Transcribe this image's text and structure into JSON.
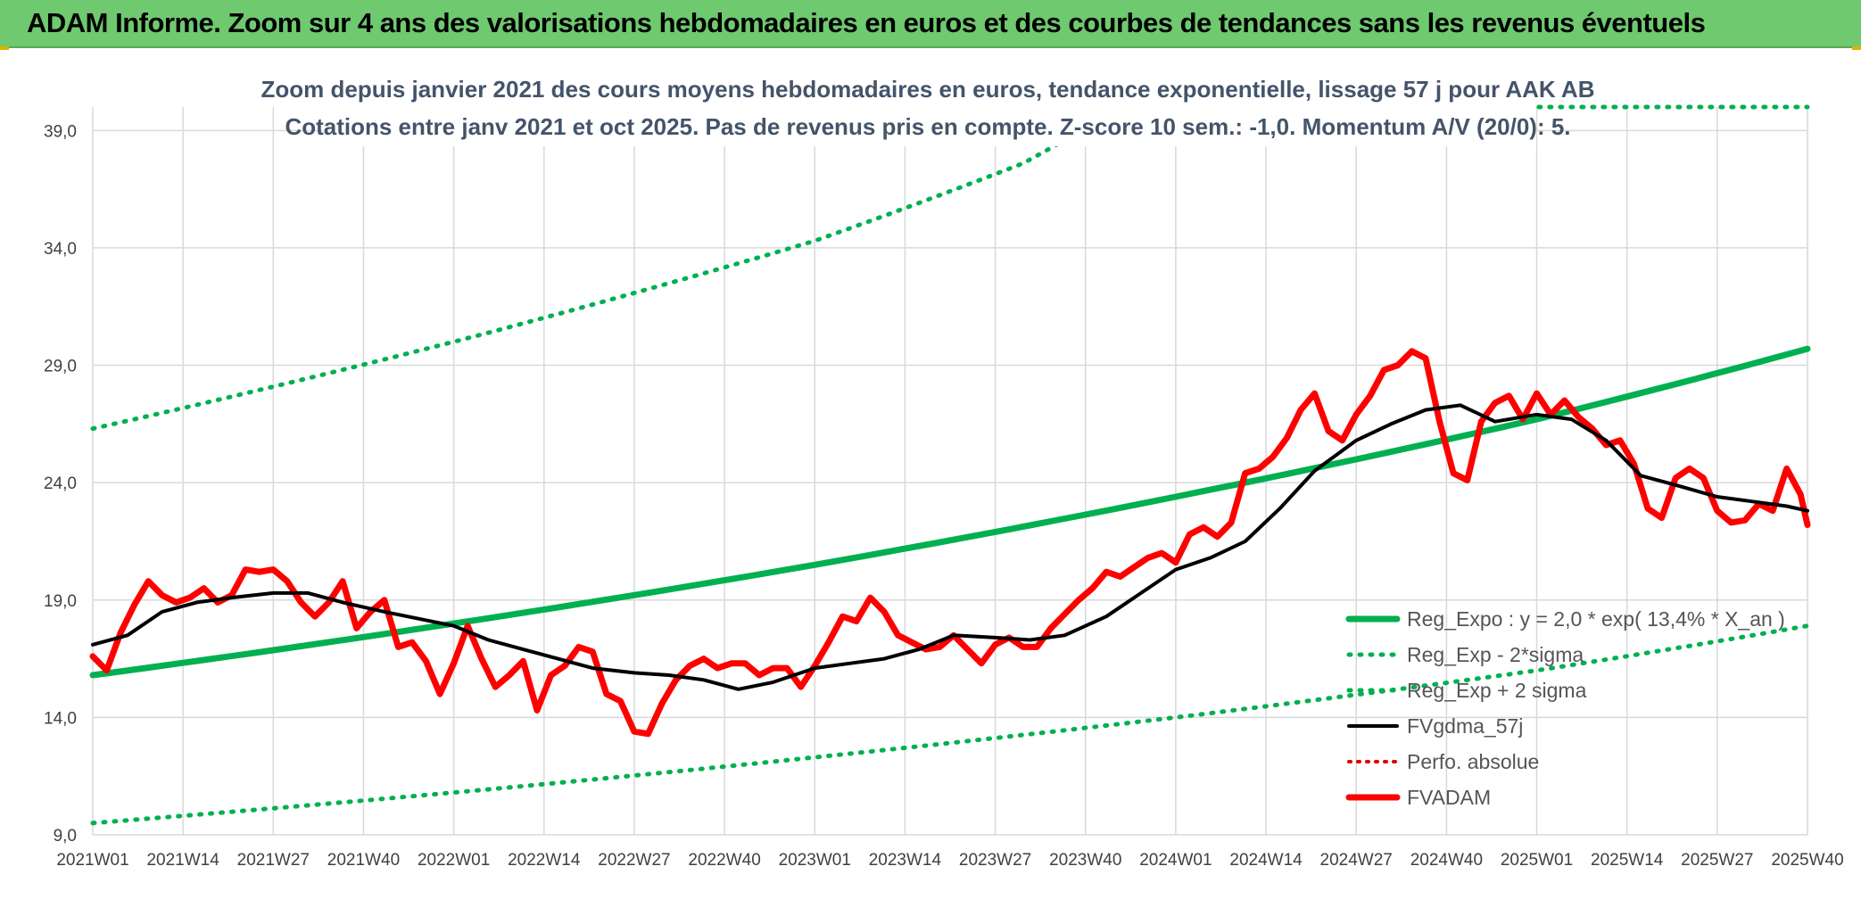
{
  "header": {
    "title": "ADAM Informe. Zoom sur 4 ans des valorisations hebdomadaires en euros et des courbes de tendances sans les revenus éventuels"
  },
  "chart_data": {
    "type": "line",
    "subtitle_line1": "Zoom depuis janvier 2021 des cours moyens hebdomadaires en euros, tendance exponentielle, lissage 57 j pour AAK AB",
    "subtitle_line2": "Cotations entre janv 2021 et oct 2025. Pas de revenus pris en compte. Z-score 10 sem.: -1,0. Momentum A/V (20/0): 5.",
    "ylim": [
      9,
      40
    ],
    "y_ticks": [
      "9,0",
      "14,0",
      "19,0",
      "24,0",
      "29,0",
      "34,0",
      "39,0"
    ],
    "y_tick_values": [
      9,
      14,
      19,
      24,
      29,
      34,
      39
    ],
    "x_ticks": [
      "2021W01",
      "2021W14",
      "2021W27",
      "2021W40",
      "2022W01",
      "2022W14",
      "2022W27",
      "2022W40",
      "2023W01",
      "2023W14",
      "2023W27",
      "2023W40",
      "2024W01",
      "2024W14",
      "2024W27",
      "2024W40",
      "2025W01",
      "2025W14",
      "2025W27",
      "2025W40"
    ],
    "x_tick_weeks": [
      0,
      13,
      26,
      39,
      52,
      65,
      78,
      91,
      104,
      117,
      130,
      143,
      156,
      169,
      182,
      195,
      208,
      221,
      234,
      247
    ],
    "grid": true,
    "legend_position": "bottom-right",
    "colors": {
      "reg_expo": "#00b050",
      "reg_minus": "#00b050",
      "reg_plus": "#00b050",
      "fvgdma": "#000000",
      "perfo": "#e00000",
      "fvadam": "#ff0000"
    },
    "series": [
      {
        "name": "Reg_Expo : y = 2,0 * exp( 13,4% *  X_an )",
        "style": "solid-thick",
        "x": [
          0,
          52,
          104,
          156,
          208,
          247
        ],
        "y": [
          15.8,
          18.0,
          20.5,
          23.4,
          26.7,
          29.7
        ]
      },
      {
        "name": "Reg_Exp - 2*sigma",
        "style": "dotted",
        "x": [
          0,
          52,
          104,
          156,
          208,
          247
        ],
        "y": [
          9.5,
          10.8,
          12.3,
          14.0,
          16.0,
          17.9
        ]
      },
      {
        "name": "Reg_Exp + 2 sigma",
        "style": "dotted",
        "x": [
          0,
          52,
          104,
          134,
          150,
          247
        ],
        "y": [
          26.3,
          30.0,
          34.3,
          37.6,
          40.3,
          40.3
        ]
      },
      {
        "name": "FVgdma_57j",
        "style": "solid",
        "x": [
          0,
          5,
          10,
          15,
          20,
          26,
          31,
          36,
          42,
          47,
          52,
          57,
          62,
          67,
          72,
          78,
          83,
          88,
          93,
          98,
          104,
          109,
          114,
          119,
          124,
          130,
          135,
          140,
          146,
          151,
          156,
          161,
          166,
          171,
          176,
          182,
          187,
          192,
          197,
          202,
          208,
          213,
          218,
          223,
          228,
          234,
          239,
          244,
          247
        ],
        "y": [
          17.1,
          17.5,
          18.5,
          18.9,
          19.1,
          19.3,
          19.3,
          18.9,
          18.5,
          18.2,
          17.9,
          17.3,
          16.9,
          16.5,
          16.1,
          15.9,
          15.8,
          15.6,
          15.2,
          15.5,
          16.1,
          16.3,
          16.5,
          16.9,
          17.5,
          17.4,
          17.3,
          17.5,
          18.3,
          19.3,
          20.3,
          20.8,
          21.5,
          22.9,
          24.5,
          25.8,
          26.5,
          27.1,
          27.3,
          26.6,
          26.9,
          26.7,
          25.8,
          24.3,
          23.9,
          23.4,
          23.2,
          23.0,
          22.8
        ]
      },
      {
        "name": "Perfo. absolue",
        "style": "dotted-red",
        "x": [],
        "y": []
      },
      {
        "name": "FVADAM",
        "style": "solid-thick",
        "x": [
          0,
          2,
          4,
          6,
          8,
          10,
          12,
          14,
          16,
          18,
          20,
          22,
          24,
          26,
          28,
          30,
          32,
          34,
          36,
          38,
          40,
          42,
          44,
          46,
          48,
          50,
          52,
          54,
          56,
          58,
          60,
          62,
          64,
          66,
          68,
          70,
          72,
          74,
          76,
          78,
          80,
          82,
          84,
          86,
          88,
          90,
          92,
          94,
          96,
          98,
          100,
          102,
          104,
          106,
          108,
          110,
          112,
          114,
          116,
          118,
          120,
          122,
          124,
          126,
          128,
          130,
          132,
          134,
          136,
          138,
          140,
          142,
          144,
          146,
          148,
          150,
          152,
          154,
          156,
          158,
          160,
          162,
          164,
          166,
          168,
          170,
          172,
          174,
          176,
          178,
          180,
          182,
          184,
          186,
          188,
          190,
          192,
          194,
          196,
          198,
          200,
          202,
          204,
          206,
          208,
          210,
          212,
          214,
          216,
          218,
          220,
          222,
          224,
          226,
          228,
          230,
          232,
          234,
          236,
          238,
          240,
          242,
          244,
          246,
          247
        ],
        "y": [
          16.6,
          16.0,
          17.6,
          18.8,
          19.8,
          19.2,
          18.9,
          19.1,
          19.5,
          18.9,
          19.2,
          20.3,
          20.2,
          20.3,
          19.8,
          18.9,
          18.3,
          18.9,
          19.8,
          17.8,
          18.5,
          19.0,
          17.0,
          17.2,
          16.4,
          15.0,
          16.3,
          17.9,
          16.5,
          15.3,
          15.8,
          16.4,
          14.3,
          15.8,
          16.2,
          17.0,
          16.8,
          15.0,
          14.7,
          13.4,
          13.3,
          14.6,
          15.6,
          16.2,
          16.5,
          16.1,
          16.3,
          16.3,
          15.8,
          16.1,
          16.1,
          15.3,
          16.2,
          17.2,
          18.3,
          18.1,
          19.1,
          18.5,
          17.5,
          17.2,
          16.9,
          17.0,
          17.5,
          16.9,
          16.3,
          17.1,
          17.4,
          17.0,
          17.0,
          17.8,
          18.4,
          19.0,
          19.5,
          20.2,
          20.0,
          20.4,
          20.8,
          21.0,
          20.6,
          21.8,
          22.1,
          21.7,
          22.3,
          24.4,
          24.6,
          25.1,
          25.9,
          27.1,
          27.8,
          26.2,
          25.8,
          26.9,
          27.7,
          28.8,
          29.0,
          29.6,
          29.3,
          26.6,
          24.4,
          24.1,
          26.6,
          27.4,
          27.7,
          26.7,
          27.8,
          26.9,
          27.5,
          26.8,
          26.3,
          25.6,
          25.8,
          24.8,
          22.9,
          22.5,
          24.2,
          24.6,
          24.2,
          22.8,
          22.3,
          22.4,
          23.1,
          22.8,
          24.6,
          23.5,
          22.2
        ]
      }
    ]
  }
}
